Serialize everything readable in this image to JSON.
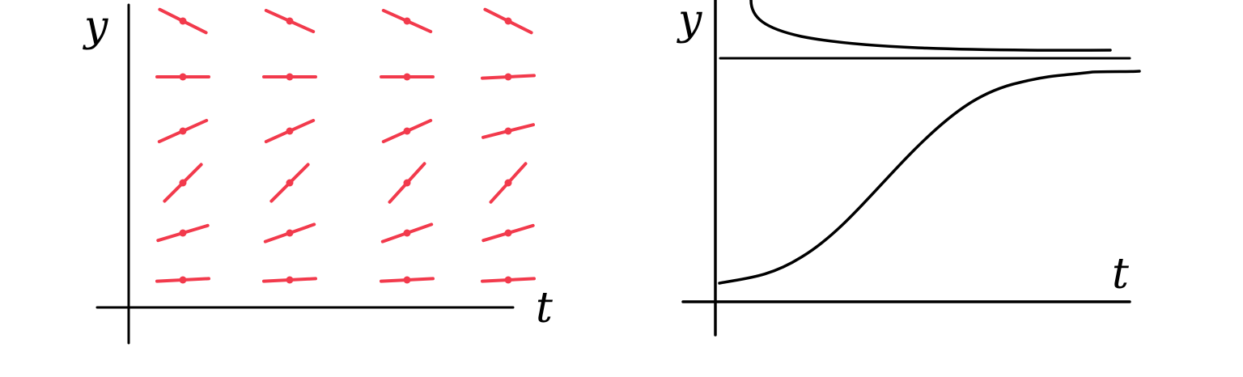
{
  "colors": {
    "background": "#ffffff",
    "ink": "#000000",
    "slope": "#f23a4c"
  },
  "left_panel": {
    "y_label": "y",
    "t_label": "t",
    "slope_field": [
      [
        -0.5,
        -0.45,
        -0.45,
        -0.5
      ],
      [
        0.0,
        0.0,
        0.0,
        0.05
      ],
      [
        0.45,
        0.45,
        0.45,
        0.25
      ],
      [
        1.0,
        1.0,
        1.1,
        1.1
      ],
      [
        0.3,
        0.35,
        0.35,
        0.3
      ],
      [
        0.05,
        0.05,
        0.05,
        0.05
      ]
    ]
  },
  "right_panel": {
    "y_label": "y",
    "t_label": "t"
  }
}
